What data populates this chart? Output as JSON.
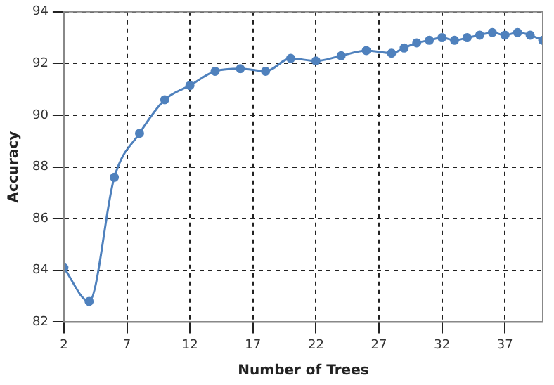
{
  "chart_data": {
    "type": "line",
    "xlabel": "Number of Trees",
    "ylabel": "Accuracy",
    "x": [
      2,
      4,
      6,
      8,
      10,
      12,
      14,
      16,
      18,
      20,
      22,
      24,
      26,
      28,
      29,
      30,
      31,
      32,
      33,
      34,
      35,
      36,
      37,
      38,
      39,
      40
    ],
    "series": [
      {
        "color": "#4f81bd",
        "values": [
          84.1,
          82.8,
          87.6,
          89.3,
          90.6,
          91.15,
          91.7,
          91.8,
          91.7,
          92.2,
          92.1,
          92.3,
          92.5,
          92.4,
          92.6,
          92.8,
          92.9,
          93.0,
          92.9,
          93.0,
          93.1,
          93.2,
          93.1,
          93.2,
          93.1,
          92.9
        ]
      }
    ],
    "xlim": [
      2,
      40
    ],
    "xticks": [
      2,
      7,
      12,
      17,
      22,
      27,
      32,
      37
    ],
    "ylim": [
      82,
      94
    ],
    "yticks": [
      82,
      84,
      86,
      88,
      90,
      92,
      94
    ],
    "grid": true,
    "legend": false,
    "marker": "circle",
    "line_style": "solid"
  }
}
